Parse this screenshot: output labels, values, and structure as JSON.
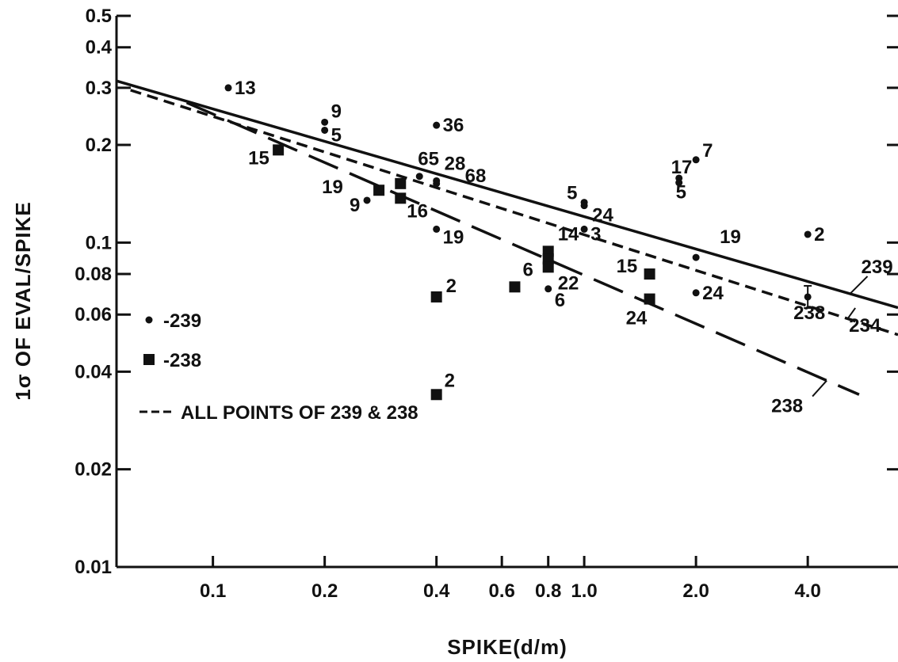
{
  "chart_data": {
    "type": "scatter",
    "title": "",
    "xlabel": "SPIKE(d/m)",
    "ylabel": "1σ OF EVAL/SPIKE",
    "x_scale": "log",
    "y_scale": "log",
    "xlim": [
      0.055,
      7.0
    ],
    "ylim": [
      0.01,
      0.5
    ],
    "x_ticks": [
      {
        "value": 0.1,
        "label": "0.1"
      },
      {
        "value": 0.2,
        "label": "0.2"
      },
      {
        "value": 0.4,
        "label": "0.4"
      },
      {
        "value": 0.6,
        "label": "0.6"
      },
      {
        "value": 0.8,
        "label": "0.8"
      },
      {
        "value": 1.0,
        "label": "1.0"
      },
      {
        "value": 2.0,
        "label": "2.0"
      },
      {
        "value": 4.0,
        "label": "4.0"
      }
    ],
    "y_ticks": [
      {
        "value": 0.5,
        "label": "0.5"
      },
      {
        "value": 0.4,
        "label": "0.4"
      },
      {
        "value": 0.3,
        "label": "0.3"
      },
      {
        "value": 0.2,
        "label": "0.2"
      },
      {
        "value": 0.1,
        "label": "0.1"
      },
      {
        "value": 0.08,
        "label": "0.08"
      },
      {
        "value": 0.06,
        "label": "0.06"
      },
      {
        "value": 0.04,
        "label": "0.04"
      },
      {
        "value": 0.02,
        "label": "0.02"
      },
      {
        "value": 0.01,
        "label": "0.01"
      }
    ],
    "grid": false,
    "legend": {
      "placement": "left",
      "entries": [
        {
          "marker": "circle",
          "label": "-239"
        },
        {
          "marker": "square",
          "label": "-238"
        },
        {
          "marker": "dashed-line",
          "label": "ALL POINTS OF 239 & 238"
        }
      ]
    },
    "series": [
      {
        "name": "-239",
        "marker": "circle",
        "points": [
          {
            "x": 0.11,
            "y": 0.3,
            "label": "13"
          },
          {
            "x": 0.2,
            "y": 0.235,
            "label": "9"
          },
          {
            "x": 0.2,
            "y": 0.222,
            "label": "5"
          },
          {
            "x": 0.4,
            "y": 0.23,
            "label": "36"
          },
          {
            "x": 0.36,
            "y": 0.16,
            "label": "65"
          },
          {
            "x": 0.4,
            "y": 0.155,
            "label": "28"
          },
          {
            "x": 0.4,
            "y": 0.152,
            "label": "68"
          },
          {
            "x": 0.26,
            "y": 0.135,
            "label": "9"
          },
          {
            "x": 0.4,
            "y": 0.11,
            "label": "19"
          },
          {
            "x": 1.0,
            "y": 0.133,
            "label": "5"
          },
          {
            "x": 1.0,
            "y": 0.13,
            "label": "24"
          },
          {
            "x": 1.0,
            "y": 0.11,
            "label": "3"
          },
          {
            "x": 0.8,
            "y": 0.072,
            "label": "6"
          },
          {
            "x": 2.0,
            "y": 0.18,
            "label": "7"
          },
          {
            "x": 1.8,
            "y": 0.158,
            "label": "17"
          },
          {
            "x": 1.8,
            "y": 0.153,
            "label": "5"
          },
          {
            "x": 2.0,
            "y": 0.09,
            "label": "19"
          },
          {
            "x": 2.0,
            "y": 0.07,
            "label": "24"
          },
          {
            "x": 4.0,
            "y": 0.106,
            "label": "2"
          },
          {
            "x": 4.0,
            "y": 0.068,
            "label": "238"
          }
        ]
      },
      {
        "name": "-238",
        "marker": "square",
        "points": [
          {
            "x": 0.15,
            "y": 0.193,
            "label": "15"
          },
          {
            "x": 0.28,
            "y": 0.145,
            "label": "19"
          },
          {
            "x": 0.32,
            "y": 0.152,
            "label": ""
          },
          {
            "x": 0.32,
            "y": 0.137,
            "label": "16"
          },
          {
            "x": 0.4,
            "y": 0.068,
            "label": "2"
          },
          {
            "x": 0.65,
            "y": 0.073,
            "label": "6"
          },
          {
            "x": 0.8,
            "y": 0.094,
            "label": "14"
          },
          {
            "x": 0.8,
            "y": 0.089,
            "label": ""
          },
          {
            "x": 0.8,
            "y": 0.084,
            "label": "22"
          },
          {
            "x": 1.5,
            "y": 0.08,
            "label": "15"
          },
          {
            "x": 1.5,
            "y": 0.067,
            "label": "24"
          },
          {
            "x": 0.4,
            "y": 0.034,
            "label": "2"
          }
        ]
      }
    ],
    "fit_lines": [
      {
        "name": "239",
        "style": "solid",
        "points": [
          [
            0.055,
            0.315
          ],
          [
            7.0,
            0.063
          ]
        ]
      },
      {
        "name": "",
        "style": "short-dash",
        "points": [
          [
            0.06,
            0.295
          ],
          [
            7.0,
            0.052
          ]
        ]
      },
      {
        "name": "238",
        "style": "long-dash",
        "points": [
          [
            0.085,
            0.27
          ],
          [
            5.5,
            0.034
          ]
        ]
      }
    ],
    "annotations": [
      {
        "text": "234",
        "x": 4.0,
        "y": 0.068
      }
    ]
  }
}
